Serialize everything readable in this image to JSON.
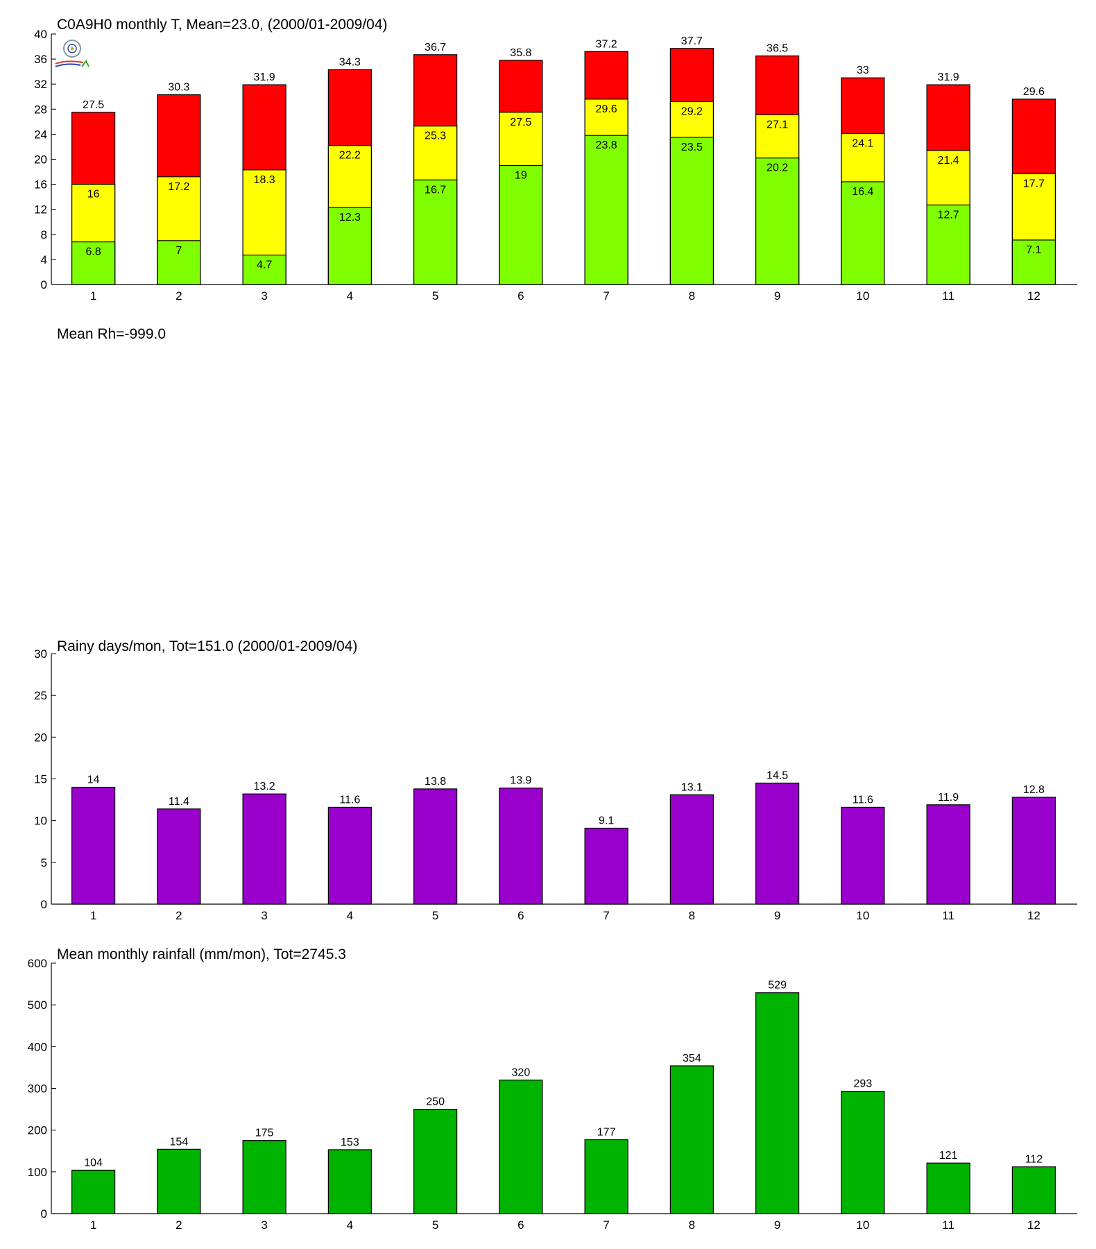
{
  "temperature_chart": {
    "title": "C0A9H0 monthly T, Mean=23.0, (2000/01-2009/04)"
  },
  "rh_chart": {
    "title": "Mean Rh=-999.0"
  },
  "rainy_chart": {
    "title": "Rainy days/mon, Tot=151.0 (2000/01-2009/04)"
  },
  "rain_chart": {
    "title": "Mean monthly rainfall (mm/mon), Tot=2745.3"
  },
  "colors": {
    "t_min": "#80ff00",
    "t_mean": "#ffff00",
    "t_max": "#ff0000",
    "rainy_days": "#9900cc",
    "rainfall": "#00b300"
  },
  "chart_data": [
    {
      "type": "bar",
      "stacked_display": "overlapping",
      "categories": [
        "1",
        "2",
        "3",
        "4",
        "5",
        "6",
        "7",
        "8",
        "9",
        "10",
        "11",
        "12"
      ],
      "series": [
        {
          "values": [
            27.5,
            30.3,
            31.9,
            34.3,
            36.7,
            35.8,
            37.2,
            37.7,
            36.5,
            33,
            31.9,
            29.6
          ]
        },
        {
          "values": [
            16,
            17.2,
            18.3,
            22.2,
            25.3,
            27.5,
            29.6,
            29.2,
            27.1,
            24.1,
            21.4,
            17.7
          ]
        },
        {
          "values": [
            6.8,
            7,
            4.7,
            12.3,
            16.7,
            19,
            23.8,
            23.5,
            20.2,
            16.4,
            12.7,
            7.1
          ]
        }
      ],
      "ylim": [
        0,
        40
      ],
      "yticks": [
        0,
        4,
        8,
        12,
        16,
        20,
        24,
        28,
        32,
        36,
        40
      ],
      "data_labels": true
    },
    {
      "type": "bar",
      "categories": [
        "1",
        "2",
        "3",
        "4",
        "5",
        "6",
        "7",
        "8",
        "9",
        "10",
        "11",
        "12"
      ],
      "values": [
        14,
        11.4,
        13.2,
        11.6,
        13.8,
        13.9,
        9.1,
        13.1,
        14.5,
        11.6,
        11.9,
        12.8
      ],
      "ylim": [
        0,
        30
      ],
      "yticks": [
        0,
        5,
        10,
        15,
        20,
        25,
        30
      ],
      "data_labels": true
    },
    {
      "type": "bar",
      "categories": [
        "1",
        "2",
        "3",
        "4",
        "5",
        "6",
        "7",
        "8",
        "9",
        "10",
        "11",
        "12"
      ],
      "values": [
        104,
        154,
        175,
        153,
        250,
        320,
        177,
        354,
        529,
        293,
        121,
        112
      ],
      "ylim": [
        0,
        600
      ],
      "yticks": [
        0,
        100,
        200,
        300,
        400,
        500,
        600
      ],
      "data_labels": true
    }
  ]
}
